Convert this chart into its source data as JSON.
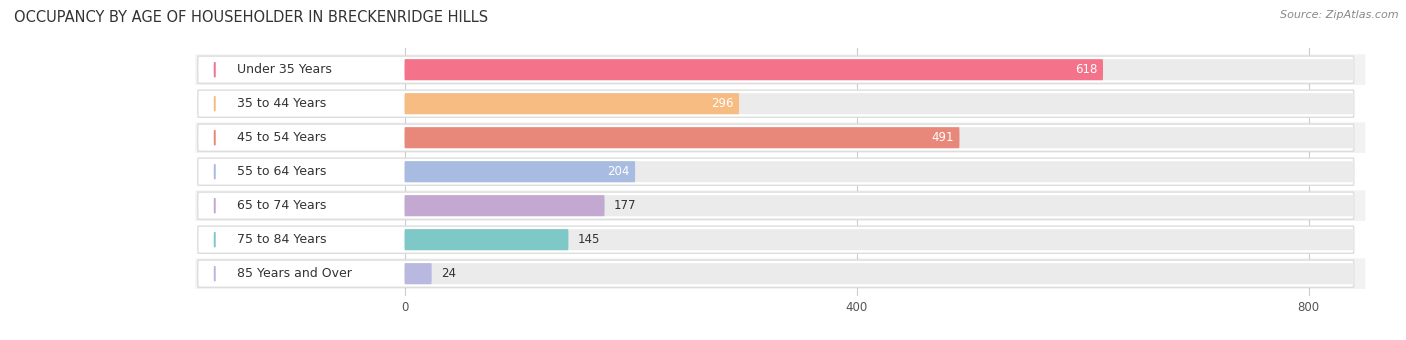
{
  "title": "OCCUPANCY BY AGE OF HOUSEHOLDER IN BRECKENRIDGE HILLS",
  "source": "Source: ZipAtlas.com",
  "categories": [
    "Under 35 Years",
    "35 to 44 Years",
    "45 to 54 Years",
    "55 to 64 Years",
    "65 to 74 Years",
    "75 to 84 Years",
    "85 Years and Over"
  ],
  "values": [
    618,
    296,
    491,
    204,
    177,
    145,
    24
  ],
  "bar_colors": [
    "#F4728A",
    "#F7BC82",
    "#E8887A",
    "#A8BBE0",
    "#C3A8D1",
    "#7EC8C8",
    "#B8B8E0"
  ],
  "xlim_max": 800,
  "xticks": [
    0,
    400,
    800
  ],
  "title_fontsize": 10.5,
  "label_fontsize": 9,
  "value_fontsize": 8.5,
  "source_fontsize": 8,
  "background_color": "#FFFFFF",
  "row_bg_color": "#F2F2F2",
  "pill_bg_color": "#FFFFFF",
  "bar_track_color": "#EBEBEB"
}
